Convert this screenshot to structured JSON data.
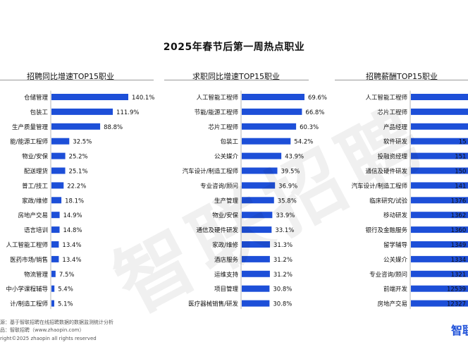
{
  "title": "2025年春节后第一周热点职业",
  "watermark": "智联招聘",
  "footer": {
    "source": "源：基于智联招聘在线招聘数据的数据监测统计分析",
    "publisher": "品：智联招聘（www.zhaopin.com）",
    "copyright": "right©2025 zhaopin all rights reserved"
  },
  "logo_text": "智联",
  "colors": {
    "bar": "#1d4fd8",
    "text": "#111111",
    "separator": "#9a9a9a"
  },
  "chart_data": [
    {
      "type": "bar",
      "orientation": "horizontal",
      "title": "招聘同比增速TOP15职业",
      "categories": [
        "仓储管理",
        "包装工",
        "生产质量管理",
        "能/能源工程师",
        "物业/安保",
        "配送理货",
        "普工/技工",
        "家政/维修",
        "房地产交易",
        "语言培训",
        "人工智能工程师",
        "医药市场/销售",
        "物流管理",
        "中小学课程辅导",
        "计/制造工程师"
      ],
      "values": [
        140.1,
        111.9,
        88.8,
        32.5,
        25.2,
        25.1,
        22.2,
        18.1,
        14.9,
        14.8,
        13.4,
        13.4,
        7.5,
        5.4,
        5.1
      ],
      "labels": [
        "140.1%",
        "111.9%",
        "88.8%",
        "32.5%",
        "25.2%",
        "25.1%",
        "22.2%",
        "18.1%",
        "14.9%",
        "14.8%",
        "13.4%",
        "13.4%",
        "7.5%",
        "5.4%",
        "5.1%"
      ],
      "xlim": [
        0,
        140.1
      ]
    },
    {
      "type": "bar",
      "orientation": "horizontal",
      "title": "求职同比增速TOP15职业",
      "categories": [
        "人工智能工程师",
        "节能/能源工程师",
        "芯片工程师",
        "包装工",
        "公关媒介",
        "汽车设计/制造工程师",
        "专业咨询/顾问",
        "生产管理",
        "物业/安保",
        "通信及硬件研发",
        "家政/维修",
        "酒店服务",
        "运维支持",
        "项目管理",
        "医疗器械销售/研发"
      ],
      "values": [
        69.6,
        66.8,
        60.3,
        54.2,
        43.9,
        39.5,
        36.9,
        35.8,
        33.9,
        33.1,
        31.3,
        31.2,
        31.2,
        30.8,
        30.8
      ],
      "labels": [
        "69.6%",
        "66.8%",
        "60.3%",
        "54.2%",
        "43.9%",
        "39.5%",
        "36.9%",
        "35.8%",
        "33.9%",
        "33.1%",
        "31.3%",
        "31.2%",
        "31.2%",
        "30.8%",
        "30.8%"
      ],
      "xlim": [
        0,
        69.6
      ]
    },
    {
      "type": "bar",
      "orientation": "horizontal",
      "title": "招聘薪酬TOP15职业",
      "categories": [
        "人工智能工程师",
        "芯片工程师",
        "产品经理",
        "软件研发",
        "投融资经理",
        "通信及硬件研发",
        "汽车设计/制造工程师",
        "临床研究/试验",
        "移动研发",
        "银行及金融服务",
        "留学辅导",
        "公关媒介",
        "专业咨询/顾问",
        "前端开发",
        "房地产交易"
      ],
      "values": [
        null,
        null,
        null,
        null,
        null,
        null,
        null,
        null,
        null,
        null,
        null,
        null,
        null,
        null,
        null
      ],
      "labels": [
        "",
        "",
        "",
        "15",
        "151",
        "150",
        "141",
        "1376",
        "1362",
        "1360",
        "1349",
        "1334",
        "1321",
        "12539",
        "12327"
      ],
      "note": "bars extend beyond the right edge of the image; values are cut off"
    }
  ]
}
